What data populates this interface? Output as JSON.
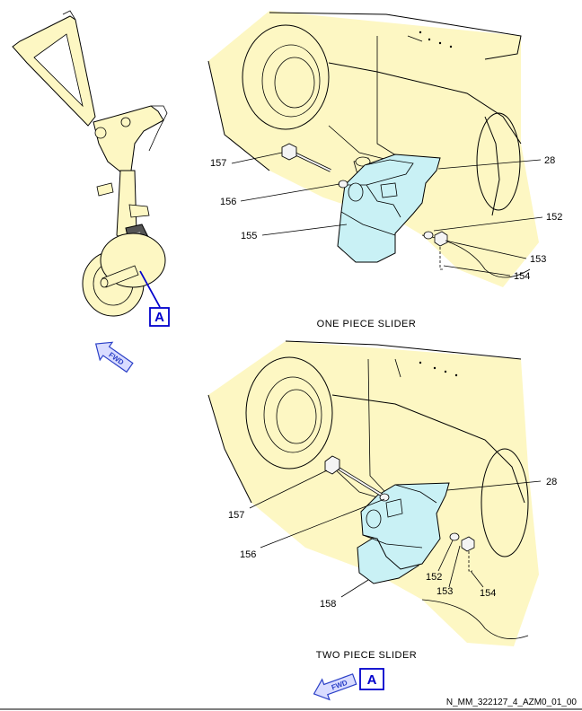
{
  "locator": {
    "callout_letter": "A",
    "fwd_label": "FWD"
  },
  "top_view": {
    "caption": "ONE PIECE SLIDER",
    "labels": {
      "l157": "157",
      "l156": "156",
      "l155": "155",
      "l28": "28",
      "l152": "152",
      "l153": "153",
      "l154": "154"
    }
  },
  "bottom_view": {
    "caption": "TWO PIECE SLIDER",
    "labels": {
      "l157": "157",
      "l156": "156",
      "l158": "158",
      "l28": "28",
      "l152": "152",
      "l153": "153",
      "l154": "154"
    },
    "callout_letter": "A",
    "fwd_label": "FWD"
  },
  "reference_code": "N_MM_322127_4_AZM0_01_00",
  "colors": {
    "structure": "#fdf7c3",
    "part": "#c9f1f5",
    "callout": "#0000cc",
    "fwd_arrow": "#d9dcff"
  }
}
